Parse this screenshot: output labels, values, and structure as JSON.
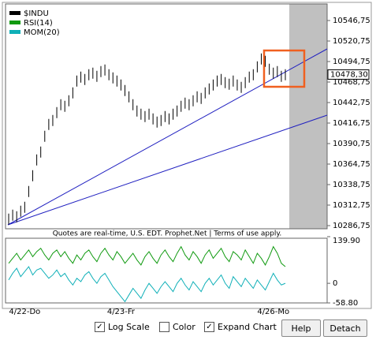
{
  "chart_data": [
    {
      "type": "ohlc",
      "series": [
        {
          "name": "$INDU",
          "color": "#000000",
          "high": [
            10302,
            10307,
            10305,
            10312,
            10317,
            10337,
            10357,
            10377,
            10387,
            10407,
            10422,
            10427,
            10437,
            10447,
            10445,
            10452,
            10462,
            10477,
            10482,
            10479,
            10485,
            10487,
            10483,
            10489,
            10491,
            10485,
            10481,
            10477,
            10472,
            10465,
            10457,
            10447,
            10439,
            10435,
            10432,
            10435,
            10429,
            10425,
            10427,
            10432,
            10429,
            10435,
            10439,
            10445,
            10449,
            10447,
            10452,
            10457,
            10455,
            10462,
            10467,
            10472,
            10477,
            10479,
            10475,
            10473,
            10477,
            10472,
            10469,
            10475,
            10482,
            10485,
            10495,
            10505,
            10502,
            10492,
            10487,
            10489,
            10483,
            10485
          ],
          "low": [
            10288,
            10293,
            10291,
            10298,
            10303,
            10323,
            10343,
            10363,
            10373,
            10393,
            10408,
            10413,
            10423,
            10433,
            10431,
            10438,
            10448,
            10463,
            10468,
            10465,
            10471,
            10473,
            10469,
            10475,
            10477,
            10471,
            10467,
            10463,
            10458,
            10451,
            10443,
            10433,
            10425,
            10421,
            10418,
            10421,
            10415,
            10411,
            10413,
            10418,
            10415,
            10421,
            10425,
            10431,
            10435,
            10433,
            10438,
            10443,
            10441,
            10448,
            10453,
            10458,
            10463,
            10465,
            10461,
            10459,
            10463,
            10458,
            10455,
            10461,
            10468,
            10471,
            10481,
            10491,
            10488,
            10478,
            10473,
            10475,
            10469,
            10471
          ]
        }
      ],
      "last_price": {
        "value": 10478.3,
        "label": "10478,30"
      },
      "ylim": [
        10282.75,
        10567.75
      ],
      "yticks": [
        {
          "value": 10546.75,
          "label": "10546,75"
        },
        {
          "value": 10520.75,
          "label": "10520,75"
        },
        {
          "value": 10494.75,
          "label": "10494,75"
        },
        {
          "value": 10468.75,
          "label": "10468,75"
        },
        {
          "value": 10442.75,
          "label": "10442,75"
        },
        {
          "value": 10416.75,
          "label": "10416,75"
        },
        {
          "value": 10390.75,
          "label": "10390,75"
        },
        {
          "value": 10364.75,
          "label": "10364,75"
        },
        {
          "value": 10338.75,
          "label": "10338,75"
        },
        {
          "value": 10312.75,
          "label": "10312,75"
        },
        {
          "value": 10286.75,
          "label": "10286,75"
        }
      ]
    },
    {
      "type": "line",
      "categories": [
        null,
        null,
        null,
        null,
        "4/22-Do",
        null,
        null,
        null,
        null,
        null,
        null,
        null,
        null,
        null,
        null,
        null,
        null,
        null,
        null,
        null,
        null,
        null,
        null,
        null,
        null,
        null,
        null,
        null,
        "4/23-Fr",
        null,
        null,
        null,
        null,
        null,
        null,
        null,
        null,
        null,
        null,
        null,
        null,
        null,
        null,
        null,
        null,
        null,
        null,
        null,
        null,
        null,
        null,
        null,
        null,
        null,
        null,
        null,
        null,
        null,
        null,
        null,
        null,
        null,
        null,
        null,
        null,
        null,
        "4/26-Mo",
        null,
        null,
        null
      ],
      "series": [
        {
          "name": "RSI(14)",
          "color": "#109a10",
          "values": [
            60,
            75,
            90,
            70,
            85,
            100,
            80,
            95,
            105,
            85,
            70,
            90,
            100,
            80,
            95,
            75,
            60,
            85,
            70,
            90,
            100,
            80,
            65,
            90,
            105,
            85,
            70,
            95,
            80,
            60,
            75,
            90,
            70,
            55,
            80,
            95,
            75,
            60,
            85,
            100,
            80,
            65,
            90,
            110,
            85,
            70,
            95,
            80,
            60,
            85,
            100,
            75,
            90,
            105,
            80,
            65,
            95,
            85,
            70,
            100,
            80,
            60,
            90,
            75,
            55,
            80,
            110,
            90,
            60,
            50
          ]
        },
        {
          "name": "MOM(20)",
          "color": "#10b0b8",
          "values": [
            10,
            30,
            45,
            20,
            35,
            50,
            25,
            40,
            45,
            30,
            15,
            25,
            40,
            20,
            30,
            10,
            -5,
            15,
            5,
            25,
            35,
            15,
            0,
            20,
            30,
            10,
            -10,
            -25,
            -40,
            -55,
            -35,
            -15,
            -30,
            -45,
            -20,
            0,
            -15,
            -30,
            -10,
            5,
            -10,
            -25,
            0,
            15,
            -5,
            -20,
            5,
            -10,
            -25,
            0,
            15,
            -5,
            10,
            25,
            0,
            -15,
            20,
            5,
            -10,
            15,
            0,
            -15,
            10,
            -5,
            -20,
            5,
            30,
            10,
            -5,
            0
          ]
        }
      ],
      "ylim": [
        -58.8,
        139.9
      ],
      "yticks": [
        {
          "value": 139.9,
          "label": "139.90"
        },
        0,
        {
          "value": -58.8,
          "label": "-58.80"
        }
      ]
    }
  ],
  "notice": "Quotes are real-time, U.S. EDT. Prophet.Net | Terms of use apply.",
  "controls": [
    {
      "label": "Log Scale",
      "checked": true
    },
    {
      "label": "Color",
      "checked": false
    },
    {
      "label": "Expand Chart",
      "checked": true
    }
  ],
  "buttons": [
    "Help",
    "Detach"
  ]
}
